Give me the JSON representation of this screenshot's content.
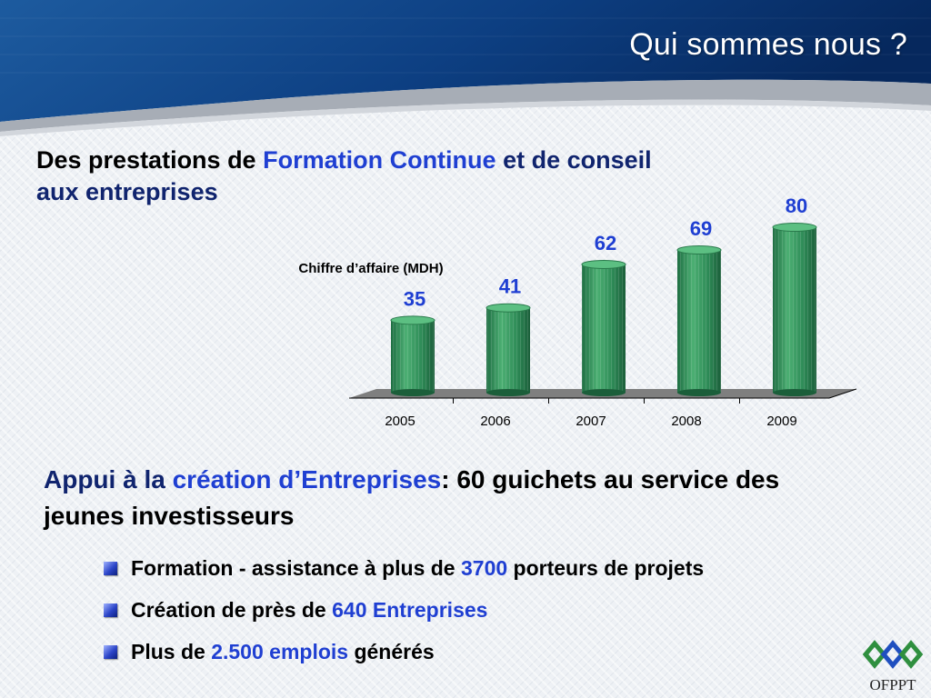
{
  "header": {
    "title": "Qui sommes nous ?"
  },
  "subtitle1": {
    "part1": "Des prestations de ",
    "highlight": "Formation Continue",
    "part2": " et de conseil aux entreprises"
  },
  "chart_data": {
    "type": "bar",
    "title": "Chiffre d’affaire (MDH)",
    "categories": [
      "2005",
      "2006",
      "2007",
      "2008",
      "2009"
    ],
    "values": [
      35,
      41,
      62,
      69,
      80
    ],
    "ylim": [
      0,
      80
    ],
    "grid": false,
    "bar_color": "#2e8b57",
    "label_color": "#1f3fd2"
  },
  "appui": {
    "part1": "Appui à la ",
    "highlight": "création d’Entreprises",
    "part2": ": 60 guichets au service des jeunes investisseurs"
  },
  "bullets": [
    {
      "before": "Formation - assistance à plus de ",
      "value": "3700",
      "after": " porteurs de projets"
    },
    {
      "before": "Création de près de ",
      "value": "640 Entreprises",
      "after": ""
    },
    {
      "before": "Plus de ",
      "value": "2.500 emplois",
      "after": " générés"
    }
  ],
  "logo": {
    "text": "OFPPT",
    "icon": "ofppt-logo-icon"
  },
  "colors": {
    "accent_blue": "#1f3fd2",
    "header_blue": "#0d3a78",
    "bar_green": "#2e8b57"
  }
}
